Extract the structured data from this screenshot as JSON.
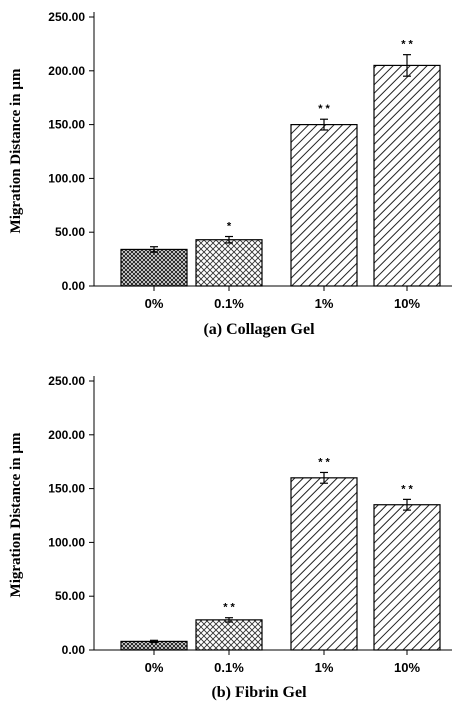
{
  "chart_data": [
    {
      "type": "bar",
      "title": "(a)  Collagen Gel",
      "ylabel": "Migration Distance in µm",
      "xlabel": "",
      "categories": [
        "0%",
        "0.1%",
        "1%",
        "10%"
      ],
      "values": [
        34,
        43,
        150,
        205
      ],
      "errors": [
        2.5,
        3,
        5,
        10
      ],
      "significance": [
        "",
        "*",
        "* *",
        "* *"
      ],
      "ylim": [
        0,
        250
      ],
      "yticks": [
        0,
        50,
        100,
        150,
        200,
        250
      ],
      "ytick_labels": [
        "0.00",
        "50.00",
        "100.00",
        "150.00",
        "200.00",
        "250.00"
      ],
      "patterns": [
        "crosshatch-dense",
        "crosshatch",
        "diagonal",
        "diagonal"
      ],
      "grid": false,
      "legend": "none"
    },
    {
      "type": "bar",
      "title": "(b)  Fibrin Gel",
      "ylabel": "Migration Distance in µm",
      "xlabel": "",
      "categories": [
        "0%",
        "0.1%",
        "1%",
        "10%"
      ],
      "values": [
        8,
        28,
        160,
        135
      ],
      "errors": [
        1,
        2,
        5,
        5
      ],
      "significance": [
        "",
        "* *",
        "* *",
        "* *"
      ],
      "ylim": [
        0,
        250
      ],
      "yticks": [
        0,
        50,
        100,
        150,
        200,
        250
      ],
      "ytick_labels": [
        "0.00",
        "50.00",
        "100.00",
        "150.00",
        "200.00",
        "250.00"
      ],
      "patterns": [
        "crosshatch-dense",
        "crosshatch",
        "diagonal",
        "diagonal"
      ],
      "grid": false,
      "legend": "none"
    }
  ]
}
